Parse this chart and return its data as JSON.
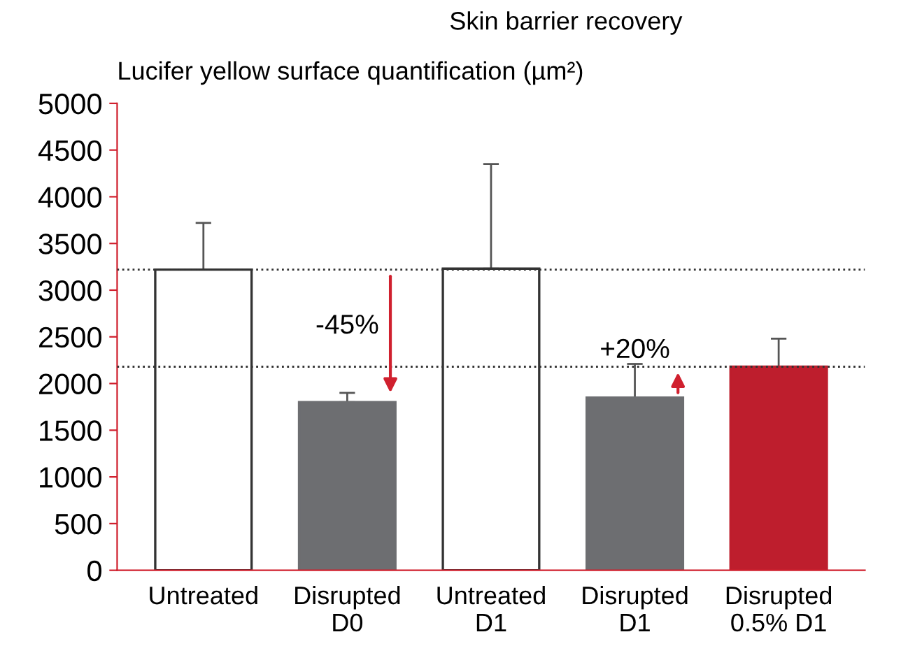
{
  "chart_data": {
    "type": "bar",
    "title": "Skin barrier recovery",
    "ylabel": "Lucifer yellow surface quantification (µm²)",
    "categories": [
      "Untreated",
      "Disrupted\nD0",
      "Untreated\nD1",
      "Disrupted\nD1",
      "Disrupted\n0.5% D1"
    ],
    "values": [
      3220,
      1800,
      3230,
      1850,
      2180
    ],
    "errors": [
      [
        3220,
        3720
      ],
      [
        1800,
        1900
      ],
      [
        3230,
        4350
      ],
      [
        1850,
        2210
      ],
      [
        2180,
        2480
      ]
    ],
    "colors": [
      "#ffffff",
      "#6d6e71",
      "#ffffff",
      "#6d6e71",
      "#be1e2d"
    ],
    "ylim": [
      0,
      5000
    ],
    "yticks": [
      0,
      500,
      1000,
      1500,
      2000,
      2500,
      3000,
      3500,
      4000,
      4500,
      5000
    ],
    "ref_lines": [
      {
        "axis": "y",
        "value": 3220,
        "color": "#333333",
        "line_style": "dotted"
      },
      {
        "axis": "y",
        "value": 2180,
        "color": "#333333",
        "line_style": "dotted"
      }
    ],
    "annotations": [
      "-45%",
      "+20%"
    ],
    "grid": false,
    "legend": false
  }
}
